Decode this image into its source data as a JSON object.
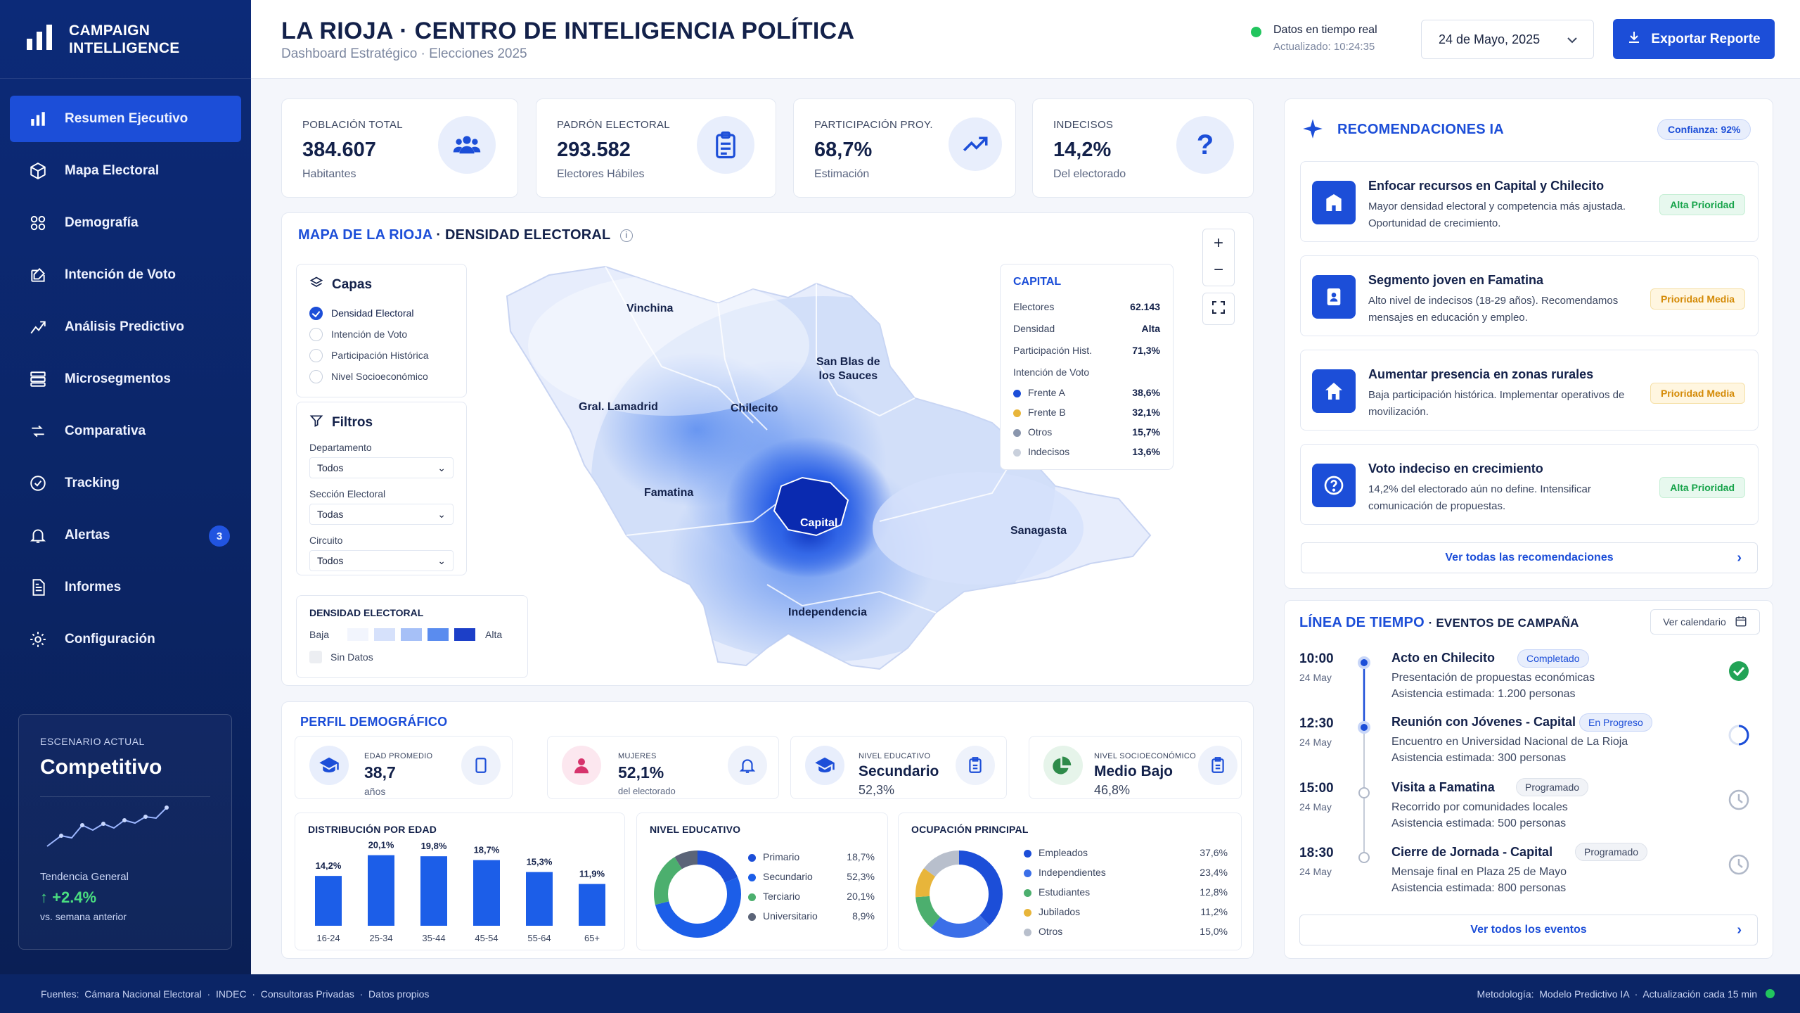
{
  "brand": {
    "line1": "CAMPAIGN",
    "line2": "INTELLIGENCE"
  },
  "nav": [
    {
      "label": "Resumen Ejecutivo",
      "icon": "bar-chart-icon",
      "active": true
    },
    {
      "label": "Mapa Electoral",
      "icon": "cube-icon"
    },
    {
      "label": "Demografía",
      "icon": "users-grid-icon"
    },
    {
      "label": "Intención de Voto",
      "icon": "edit-box-icon"
    },
    {
      "label": "Análisis Predictivo",
      "icon": "trend-line-icon"
    },
    {
      "label": "Microsegmentos",
      "icon": "segments-icon"
    },
    {
      "label": "Comparativa",
      "icon": "compare-icon"
    },
    {
      "label": "Tracking",
      "icon": "target-check-icon"
    },
    {
      "label": "Alertas",
      "icon": "bell-icon",
      "badge": "3"
    },
    {
      "label": "Informes",
      "icon": "document-icon"
    },
    {
      "label": "Configuración",
      "icon": "gear-icon"
    }
  ],
  "scenario": {
    "label": "ESCENARIO ACTUAL",
    "value": "Competitivo",
    "trend_label": "Tendencia General",
    "trend": "↑ +2.4%",
    "trend_sub": "vs. semana anterior"
  },
  "header": {
    "title": "LA RIOJA · CENTRO DE INTELIGENCIA POLÍTICA",
    "subtitle": "Dashboard Estratégico · Elecciones 2025",
    "live_title": "Datos en tiempo real",
    "live_updated": "Actualizado: 10:24:35",
    "date": "24 de Mayo, 2025",
    "export_label": "Exportar Reporte"
  },
  "kpis": [
    {
      "label": "POBLACIÓN TOTAL",
      "value": "384.607",
      "sub": "Habitantes",
      "icon": "people-icon"
    },
    {
      "label": "PADRÓN ELECTORAL",
      "value": "293.582",
      "sub": "Electores Hábiles",
      "icon": "clipboard-icon"
    },
    {
      "label": "PARTICIPACIÓN PROY.",
      "value": "68,7%",
      "sub": "Estimación",
      "icon": "trend-up-icon"
    },
    {
      "label": "INDECISOS",
      "value": "14,2%",
      "sub": "Del electorado",
      "icon": "question-icon"
    }
  ],
  "map": {
    "title_accent": "MAPA DE LA RIOJA",
    "title_rest": "· DENSIDAD ELECTORAL",
    "layers_title": "Capas",
    "layers": [
      {
        "label": "Densidad Electoral",
        "checked": true
      },
      {
        "label": "Intención de Voto",
        "checked": false
      },
      {
        "label": "Participación Histórica",
        "checked": false
      },
      {
        "label": "Nivel Socioeconómico",
        "checked": false
      }
    ],
    "filters_title": "Filtros",
    "filters": [
      {
        "label": "Departamento",
        "value": "Todos"
      },
      {
        "label": "Sección Electoral",
        "value": "Todas"
      },
      {
        "label": "Circuito",
        "value": "Todos"
      }
    ],
    "density_title": "DENSIDAD ELECTORAL",
    "density_low": "Baja",
    "density_high": "Alta",
    "no_data": "Sin Datos",
    "regions": [
      "Vinchina",
      "San Blas de",
      "los Sauces",
      "Gral. Lamadrid",
      "Chilecito",
      "Famatina",
      "Capital",
      "Sanagasta",
      "Independencia"
    ],
    "info": {
      "title": "CAPITAL",
      "rows": [
        {
          "label": "Electores",
          "value": "62.143"
        },
        {
          "label": "Densidad",
          "value": "Alta"
        },
        {
          "label": "Participación Hist.",
          "value": "71,3%"
        }
      ],
      "intent_label": "Intención de Voto",
      "intent": [
        {
          "label": "Frente A",
          "value": "38,6%",
          "color": "#1c4ed8"
        },
        {
          "label": "Frente B",
          "value": "32,1%",
          "color": "#e8b53a"
        },
        {
          "label": "Otros",
          "value": "15,7%",
          "color": "#8a96ad"
        },
        {
          "label": "Indecisos",
          "value": "13,6%",
          "color": "#c9d0dc"
        }
      ]
    }
  },
  "demo": {
    "title": "PERFIL DEMOGRÁFICO",
    "cards": [
      {
        "label": "EDAD PROMEDIO",
        "value": "38,7",
        "sub": "años"
      },
      {
        "label": "MUJERES",
        "value": "52,1%",
        "sub": "del electorado"
      },
      {
        "label": "NIVEL EDUCATIVO",
        "value": "Secundario",
        "sub": "52,3%"
      },
      {
        "label": "NIVEL SOCIOECONÓMICO",
        "value": "Medio Bajo",
        "sub": "46,8%"
      }
    ]
  },
  "chart_data": [
    {
      "type": "bar",
      "title": "DISTRIBUCIÓN POR EDAD",
      "categories": [
        "16-24",
        "25-34",
        "35-44",
        "45-54",
        "55-64",
        "65+"
      ],
      "values": [
        14.2,
        20.1,
        19.8,
        18.7,
        15.3,
        11.9
      ],
      "labels": [
        "14,2%",
        "20,1%",
        "19,8%",
        "18,7%",
        "15,3%",
        "11,9%"
      ],
      "ylim": [
        0,
        22
      ],
      "color": "#1c5ee8"
    },
    {
      "type": "pie",
      "title": "NIVEL EDUCATIVO",
      "categories": [
        "Primario",
        "Secundario",
        "Terciario",
        "Universitario"
      ],
      "values": [
        18.7,
        52.3,
        20.1,
        8.9
      ],
      "labels": [
        "18,7%",
        "52,3%",
        "20,1%",
        "8,9%"
      ],
      "colors": [
        "#1c4ed8",
        "#1c5ee8",
        "#4caf6e",
        "#5b6478"
      ]
    },
    {
      "type": "pie",
      "title": "OCUPACIÓN PRINCIPAL",
      "categories": [
        "Empleados",
        "Independientes",
        "Estudiantes",
        "Jubilados",
        "Otros"
      ],
      "values": [
        37.6,
        23.4,
        12.8,
        11.2,
        15.0
      ],
      "labels": [
        "37,6%",
        "23,4%",
        "12,8%",
        "11,2%",
        "15,0%"
      ],
      "colors": [
        "#1c4ed8",
        "#3b6fe8",
        "#4caf6e",
        "#e8b53a",
        "#b8bfcc"
      ]
    }
  ],
  "ai": {
    "title": "RECOMENDACIONES IA",
    "confidence": "Confianza: 92%",
    "items": [
      {
        "title": "Enfocar recursos en Capital y Chilecito",
        "desc": "Mayor densidad electoral y competencia más ajustada. Oportunidad de crecimiento.",
        "priority": "Alta Prioridad",
        "level": "alta",
        "icon": "building-icon"
      },
      {
        "title": "Segmento joven en Famatina",
        "desc": "Alto nivel de indecisos (18-29 años). Recomendamos mensajes en educación y empleo.",
        "priority": "Prioridad Media",
        "level": "media",
        "icon": "id-badge-icon"
      },
      {
        "title": "Aumentar presencia en zonas rurales",
        "desc": "Baja participación histórica. Implementar operativos de movilización.",
        "priority": "Prioridad Media",
        "level": "media",
        "icon": "house-icon"
      },
      {
        "title": "Voto indeciso en crecimiento",
        "desc": "14,2% del electorado aún no define. Intensificar comunicación de propuestas.",
        "priority": "Alta Prioridad",
        "level": "alta",
        "icon": "help-circle-icon"
      }
    ],
    "see_all": "Ver todas las recomendaciones"
  },
  "timeline": {
    "title_accent": "LÍNEA DE TIEMPO",
    "title_rest": "· EVENTOS DE CAMPAÑA",
    "calendar": "Ver calendario",
    "events": [
      {
        "time": "10:00",
        "date": "24 May",
        "title": "Acto en Chilecito",
        "status": "Completado",
        "kind": "done",
        "desc1": "Presentación de propuestas económicas",
        "desc2": "Asistencia estimada: 1.200 personas"
      },
      {
        "time": "12:30",
        "date": "24 May",
        "title": "Reunión con Jóvenes - Capital",
        "status": "En Progreso",
        "kind": "prog",
        "desc1": "Encuentro en Universidad Nacional de La Rioja",
        "desc2": "Asistencia estimada: 300 personas"
      },
      {
        "time": "15:00",
        "date": "24 May",
        "title": "Visita a Famatina",
        "status": "Programado",
        "kind": "plan",
        "desc1": "Recorrido por comunidades locales",
        "desc2": "Asistencia estimada: 500 personas"
      },
      {
        "time": "18:30",
        "date": "24 May",
        "title": "Cierre de Jornada - Capital",
        "status": "Programado",
        "kind": "plan",
        "desc1": "Mensaje final en Plaza 25 de Mayo",
        "desc2": "Asistencia estimada: 800 personas"
      }
    ],
    "see_all": "Ver todos los eventos"
  },
  "footer": {
    "sources": "Fuentes:  Cámara Nacional Electoral  ·  INDEC  ·  Consultoras Privadas  ·  Datos propios",
    "method": "Metodología:  Modelo Predictivo IA  ·  Actualización cada 15 min"
  }
}
